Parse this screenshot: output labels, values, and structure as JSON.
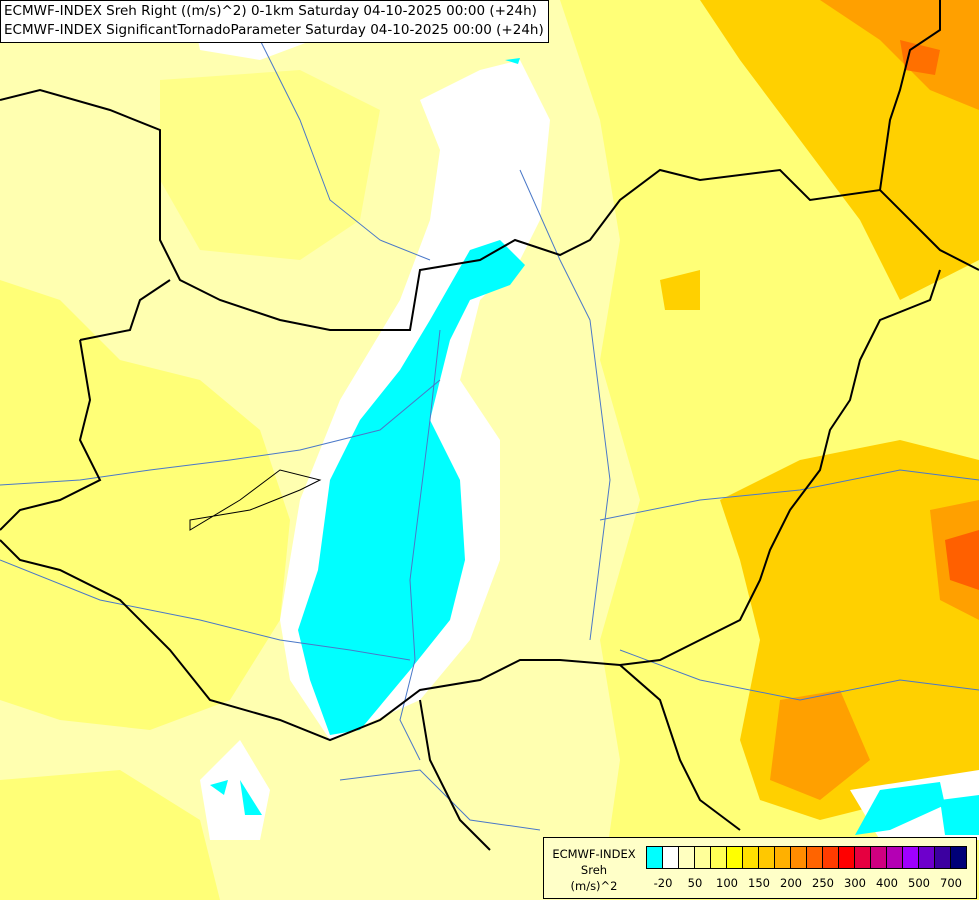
{
  "title": {
    "line1": "ECMWF-INDEX Sreh Right ((m/s)^2) 0-1km Saturday 04-10-2025 00:00 (+24h)",
    "line2": "ECMWF-INDEX SignificantTornadoParameter Saturday 04-10-2025 00:00 (+24h)"
  },
  "legend": {
    "model": "ECMWF-INDEX",
    "parameter": "Sreh",
    "unit": "(m/s)^2",
    "colors": [
      "#00ffff",
      "#ffffff",
      "#ffffc0",
      "#ffff99",
      "#ffff55",
      "#ffff00",
      "#ffe000",
      "#ffc800",
      "#ffb000",
      "#ff8c00",
      "#ff6400",
      "#ff3c00",
      "#ff0000",
      "#e60040",
      "#d00080",
      "#b400b4",
      "#a000ff",
      "#6e00cc",
      "#3c00a0",
      "#000078"
    ],
    "ticks": [
      "-20",
      "50",
      "100",
      "150",
      "200",
      "250",
      "300",
      "400",
      "500",
      "700"
    ]
  },
  "colors": {
    "land_low": "#ffffb0",
    "yellow": "#ffff66",
    "orange": "#ffc000",
    "cyan": "#00ffff",
    "border": "#000000",
    "river": "#4a78c8"
  }
}
